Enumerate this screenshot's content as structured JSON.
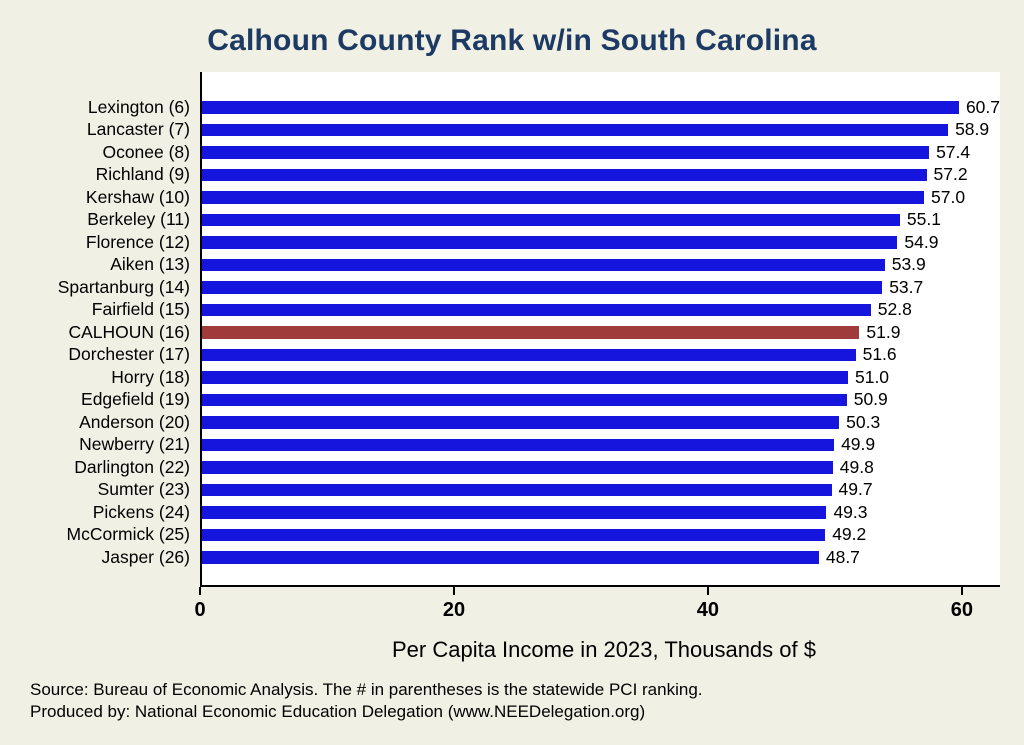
{
  "chart_data": {
    "type": "bar",
    "orientation": "horizontal",
    "title": "Calhoun County Rank w/in South Carolina",
    "categories": [
      "Lexington (6)",
      "Lancaster (7)",
      "Oconee (8)",
      "Richland (9)",
      "Kershaw (10)",
      "Berkeley (11)",
      "Florence (12)",
      "Aiken (13)",
      "Spartanburg (14)",
      "Fairfield (15)",
      "CALHOUN (16)",
      "Dorchester (17)",
      "Horry (18)",
      "Edgefield (19)",
      "Anderson (20)",
      "Newberry (21)",
      "Darlington (22)",
      "Sumter (23)",
      "Pickens (24)",
      "McCormick (25)",
      "Jasper (26)"
    ],
    "values": [
      60.7,
      58.9,
      57.4,
      57.2,
      57.0,
      55.1,
      54.9,
      53.9,
      53.7,
      52.8,
      51.9,
      51.6,
      51.0,
      50.9,
      50.3,
      49.9,
      49.8,
      49.7,
      49.3,
      49.2,
      48.7
    ],
    "value_label_decimals": 1,
    "highlight_index": 10,
    "colors": {
      "bar": "#1515dd",
      "highlight": "#a03b3b",
      "title": "#1c3a63",
      "background": "#f0f1e4",
      "plot_background": "#ffffff"
    },
    "xlabel": "Per Capita Income in 2023, Thousands of $",
    "xticks": [
      0,
      20,
      40,
      60
    ],
    "xlim": [
      0,
      63
    ],
    "grid": false,
    "legend": "none"
  },
  "footer": {
    "source": "Source: Bureau of Economic Analysis. The # in parentheses is the statewide PCI ranking.",
    "produced_by": "Produced by: National Economic Education Delegation (www.NEEDelegation.org)"
  }
}
